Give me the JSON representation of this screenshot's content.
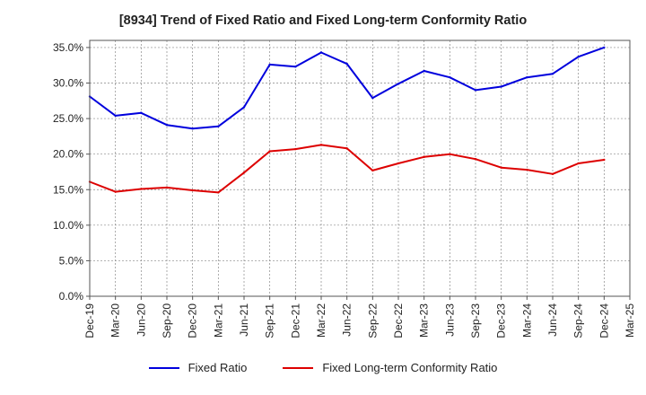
{
  "chart_data": {
    "type": "line",
    "title": "[8934]  Trend of Fixed Ratio and Fixed Long-term Conformity Ratio",
    "x": [
      "Dec-19",
      "Mar-20",
      "Jun-20",
      "Sep-20",
      "Dec-20",
      "Mar-21",
      "Jun-21",
      "Sep-21",
      "Dec-21",
      "Mar-22",
      "Jun-22",
      "Sep-22",
      "Dec-22",
      "Mar-23",
      "Jun-23",
      "Sep-23",
      "Dec-23",
      "Mar-24",
      "Jun-24",
      "Sep-24",
      "Dec-24",
      "Mar-25"
    ],
    "y_ticks": [
      "0.0%",
      "5.0%",
      "10.0%",
      "15.0%",
      "20.0%",
      "25.0%",
      "30.0%",
      "35.0%"
    ],
    "ylim": [
      0,
      36
    ],
    "grid": true,
    "legend_position": "bottom",
    "series": [
      {
        "name": "Fixed Ratio",
        "color": "#0000dd",
        "values": [
          28.1,
          25.4,
          25.8,
          24.1,
          23.6,
          23.9,
          26.6,
          32.6,
          32.3,
          34.3,
          32.7,
          27.9,
          29.9,
          31.7,
          30.8,
          29.0,
          29.5,
          30.8,
          31.3,
          33.7,
          35.0,
          null
        ]
      },
      {
        "name": "Fixed Long-term Conformity Ratio",
        "color": "#dd0000",
        "values": [
          16.1,
          14.7,
          15.1,
          15.3,
          14.9,
          14.6,
          17.4,
          20.4,
          20.7,
          21.3,
          20.8,
          17.7,
          18.7,
          19.6,
          20.0,
          19.3,
          18.1,
          17.8,
          17.2,
          18.7,
          19.2,
          null
        ]
      }
    ]
  }
}
